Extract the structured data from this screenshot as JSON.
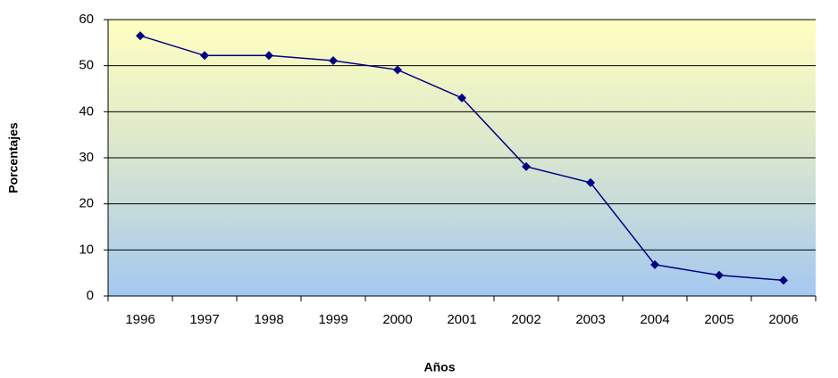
{
  "chart_data": {
    "type": "line",
    "x_label": "Años",
    "y_label": "Porcentajes",
    "categories": [
      "1996",
      "1997",
      "1998",
      "1999",
      "2000",
      "2001",
      "2002",
      "2003",
      "2004",
      "2005",
      "2006"
    ],
    "series": [
      {
        "color": "#000080",
        "values": [
          56.5,
          52.2,
          52.2,
          51.1,
          49.1,
          43.0,
          28.1,
          24.6,
          6.8,
          4.5,
          3.4
        ]
      }
    ],
    "ylim": [
      0,
      60
    ],
    "yticks": [
      0,
      10,
      20,
      30,
      40,
      50,
      60
    ],
    "grid": true
  }
}
